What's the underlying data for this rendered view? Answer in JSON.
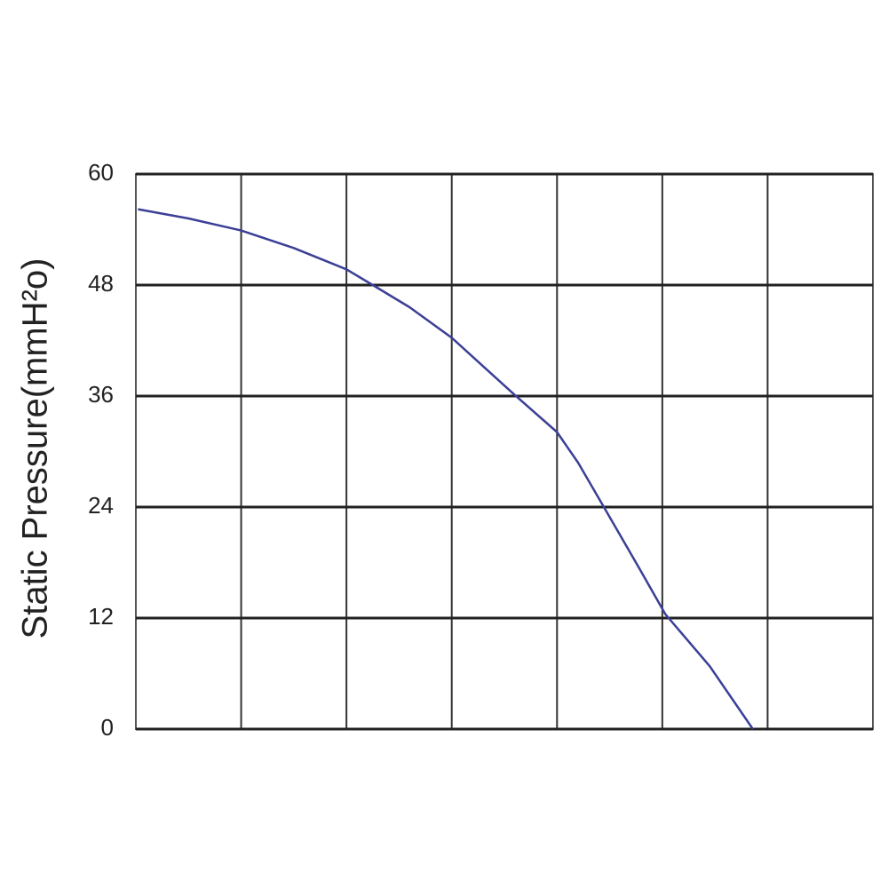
{
  "chart_data": {
    "type": "line",
    "y_label": "Static Pressure(mmH²o)",
    "x": [
      0.02,
      0.5,
      1,
      1.5,
      2,
      2.25,
      2.6,
      3,
      3.3,
      3.6,
      4,
      4.2,
      4.44,
      4.78,
      5.03,
      5.45,
      5.86
    ],
    "series": [
      {
        "color": "#3b3f96",
        "values": [
          56.2,
          55.2,
          53.9,
          52.0,
          49.7,
          48.0,
          45.6,
          42.3,
          39.2,
          36.1,
          32.1,
          28.8,
          24.1,
          17.4,
          12.4,
          6.8,
          0
        ]
      }
    ],
    "xlim": [
      0,
      7
    ],
    "xticks": [
      1,
      2,
      3,
      4,
      5,
      6
    ],
    "xtick_labels": false,
    "ylim": [
      0,
      60
    ],
    "yticks": [
      0,
      12,
      24,
      36,
      48,
      60
    ],
    "grid": true
  }
}
